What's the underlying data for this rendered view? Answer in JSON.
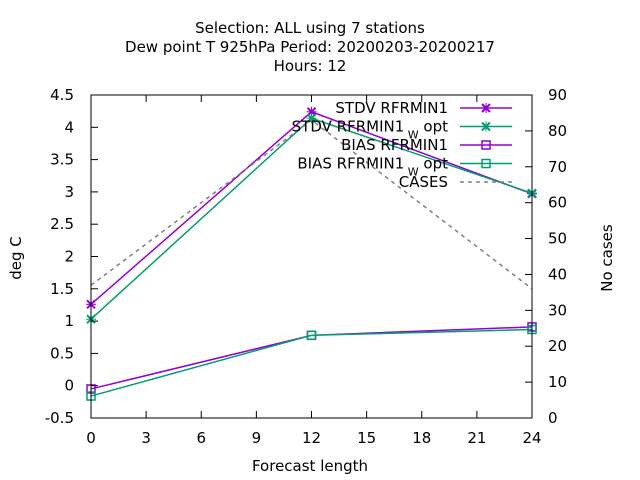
{
  "chart_data": {
    "type": "line",
    "title_lines": [
      "Selection: ALL using     7 stations",
      "Dew point T 925hPa   Period: 20200203-20200217",
      "Hours:  12"
    ],
    "xlabel": "Forecast length",
    "ylabel": "deg C",
    "y2label": "No cases",
    "xlim": [
      0,
      24
    ],
    "ylim": [
      -0.5,
      4.5
    ],
    "y2lim": [
      0,
      90
    ],
    "xticks": [
      0,
      3,
      6,
      9,
      12,
      15,
      18,
      21,
      24
    ],
    "yticks": [
      -0.5,
      0,
      0.5,
      1,
      1.5,
      2,
      2.5,
      3,
      3.5,
      4,
      4.5
    ],
    "yticklabels": [
      "-0.5",
      "0",
      "0.5",
      "1",
      "1.5",
      "2",
      "2.5",
      "3",
      "3.5",
      "4",
      "4.5"
    ],
    "y2ticks": [
      0,
      10,
      20,
      30,
      40,
      50,
      60,
      70,
      80,
      90
    ],
    "grid": false,
    "legend_position": "top-right",
    "x": [
      0,
      12,
      24
    ],
    "series": [
      {
        "name": "STDV RFRMIN1",
        "subscript": "",
        "values": [
          1.26,
          4.24,
          2.97
        ],
        "color": "#9400d3",
        "marker": "x",
        "axis": "y1",
        "dash": false
      },
      {
        "name": "STDV RFRMIN1",
        "subscript": "W",
        "suffix": " opt",
        "values": [
          1.03,
          4.14,
          2.98
        ],
        "color": "#009e73",
        "marker": "x",
        "axis": "y1",
        "dash": false
      },
      {
        "name": "BIAS RFRMIN1",
        "subscript": "",
        "values": [
          -0.05,
          0.78,
          0.91
        ],
        "color": "#9400d3",
        "marker": "square",
        "axis": "y1",
        "dash": false
      },
      {
        "name": "BIAS RFRMIN1",
        "subscript": "W",
        "suffix": " opt",
        "values": [
          -0.16,
          0.78,
          0.87
        ],
        "color": "#009e73",
        "marker": "square",
        "axis": "y1",
        "dash": false
      },
      {
        "name": "CASES",
        "subscript": "",
        "values": [
          37,
          83,
          36
        ],
        "color": "#808080",
        "marker": "none",
        "axis": "y2",
        "dash": true
      }
    ]
  }
}
